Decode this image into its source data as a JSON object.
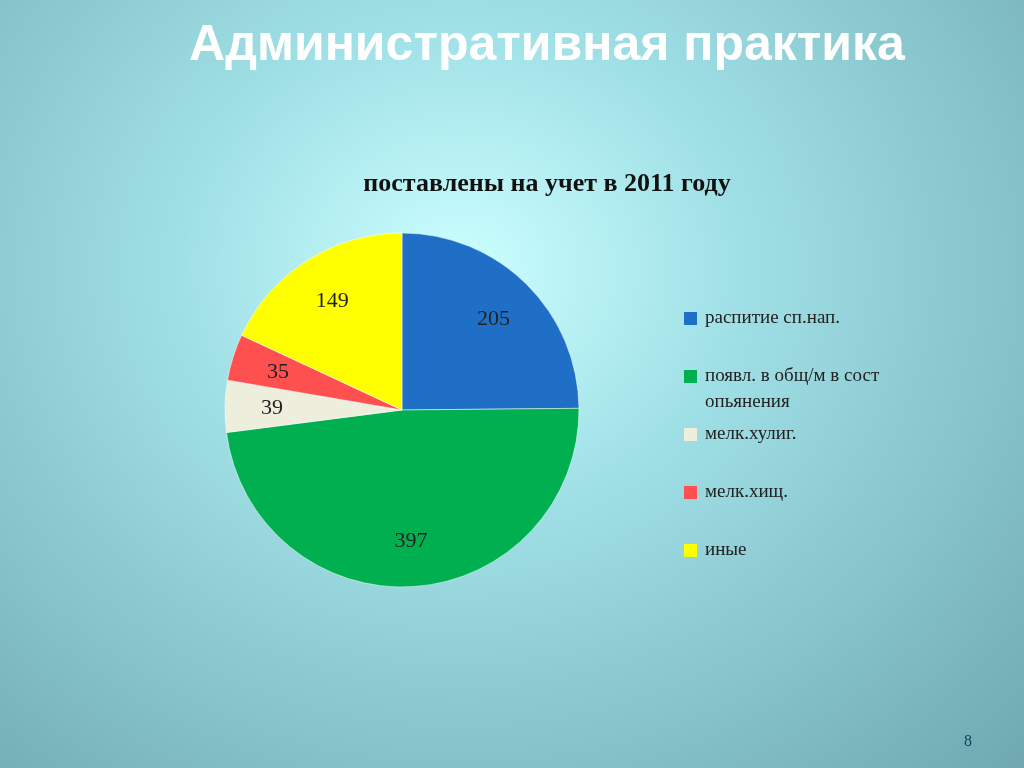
{
  "chart_data": {
    "type": "pie",
    "title": "Административная практика",
    "subtitle": "поставлены на учет в 2011 году",
    "categories": [
      "распитие сп.нап.",
      "появл. в общ/м в сост опьянения",
      "мелк.хулиг.",
      "мелк.хищ.",
      "иные"
    ],
    "values": [
      205,
      397,
      39,
      35,
      149
    ],
    "colors": [
      "#1f6fc6",
      "#00b050",
      "#eeeedd",
      "#ff5050",
      "#ffff00"
    ],
    "data_labels": true,
    "legend": "right",
    "annotations": [
      "8"
    ]
  }
}
